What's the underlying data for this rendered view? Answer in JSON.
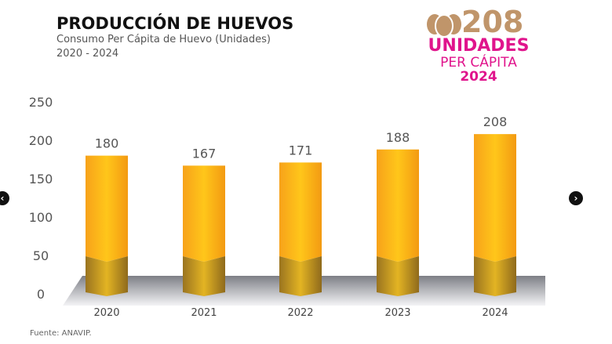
{
  "header": {
    "title": "PRODUCCIÓN DE HUEVOS",
    "subtitle": "Consumo Per Cápita de Huevo (Unidades)",
    "range": "2020 - 2024"
  },
  "badge": {
    "value": "208",
    "unit": "UNIDADES",
    "per": "PER CÁPITA",
    "year": "2024",
    "icon": "eggs-icon",
    "colors": {
      "value": "#c0956a",
      "text": "#e0148c"
    }
  },
  "source": "Fuente: ANAVIP.",
  "nav": {
    "prev": "chevron-left-icon",
    "next": "chevron-right-icon"
  },
  "chart_data": {
    "type": "bar",
    "categories": [
      "2020",
      "2021",
      "2022",
      "2023",
      "2024"
    ],
    "values": [
      180,
      167,
      171,
      188,
      208
    ],
    "data_labels": [
      "180",
      "167",
      "171",
      "188",
      "208"
    ],
    "yticks": [
      "0",
      "50",
      "100",
      "150",
      "200",
      "250"
    ],
    "ylim": [
      0,
      250
    ],
    "grid": false,
    "colors": {
      "bar": "#fbb116",
      "base": "#a8821f"
    }
  }
}
